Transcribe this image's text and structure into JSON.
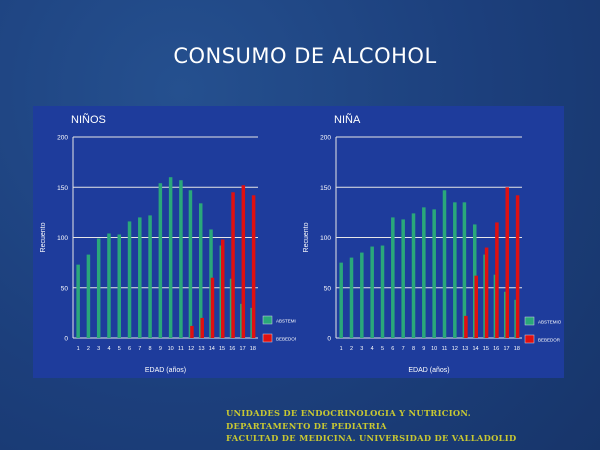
{
  "slide": {
    "title": "CONSUMO DE ALCOHOL",
    "background_color": "#1c3f7c",
    "panel_color": "#1e3c9c"
  },
  "footer": {
    "lines": [
      "UNIDADES DE ENDOCRINOLOGIA Y NUTRICION.",
      "DEPARTAMENTO DE PEDIATRIA",
      "FACULTAD DE MEDICINA. UNIVERSIDAD DE VALLADOLID"
    ],
    "color": "#c8c832"
  },
  "chart_data": [
    {
      "type": "bar",
      "title": "NIÑOS",
      "xlabel": "EDAD (años)",
      "ylabel": "Recuento",
      "ylim": [
        0,
        200
      ],
      "yticks": [
        0,
        50,
        100,
        150,
        200
      ],
      "grid": true,
      "legend_position": "right",
      "categories": [
        "1",
        "2",
        "3",
        "4",
        "5",
        "6",
        "7",
        "8",
        "9",
        "10",
        "11",
        "12",
        "13",
        "14",
        "15",
        "16",
        "17",
        "18"
      ],
      "series": [
        {
          "name": "ABSTEMI",
          "color": "#2aa87a",
          "values": [
            73,
            83,
            99,
            104,
            103,
            116,
            120,
            122,
            154,
            160,
            157,
            147,
            134,
            108,
            92,
            59,
            34,
            30
          ]
        },
        {
          "name": "BEBEDOR",
          "color": "#e01010",
          "values": [
            0,
            0,
            0,
            0,
            0,
            0,
            0,
            0,
            0,
            0,
            0,
            12,
            20,
            60,
            98,
            145,
            152,
            142
          ]
        }
      ]
    },
    {
      "type": "bar",
      "title": "NIÑA",
      "xlabel": "EDAD (años)",
      "ylabel": "Recuento",
      "ylim": [
        0,
        200
      ],
      "yticks": [
        0,
        50,
        100,
        150,
        200
      ],
      "grid": true,
      "legend_position": "right",
      "categories": [
        "1",
        "2",
        "3",
        "4",
        "5",
        "6",
        "7",
        "8",
        "9",
        "10",
        "11",
        "12",
        "13",
        "14",
        "15",
        "16",
        "17",
        "18"
      ],
      "series": [
        {
          "name": "ABSTEMIO",
          "color": "#2aa87a",
          "values": [
            75,
            80,
            85,
            91,
            92,
            120,
            118,
            124,
            130,
            128,
            147,
            135,
            135,
            113,
            83,
            63,
            46,
            38
          ]
        },
        {
          "name": "BEBEDOR",
          "color": "#e01010",
          "values": [
            0,
            0,
            0,
            0,
            0,
            0,
            0,
            0,
            0,
            0,
            0,
            0,
            22,
            62,
            90,
            115,
            150,
            142
          ]
        }
      ]
    }
  ]
}
